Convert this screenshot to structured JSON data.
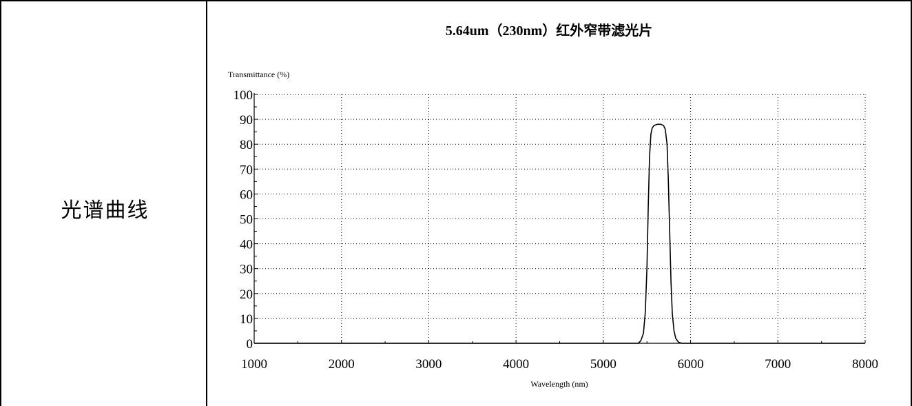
{
  "row_label": "光谱曲线",
  "chart_data": {
    "type": "line",
    "title": "5.64um（230nm）红外窄带滤光片",
    "xlabel": "Wavelength (nm)",
    "ylabel": "Transmittance (%)",
    "xlim": [
      1000,
      8000
    ],
    "ylim": [
      0,
      100
    ],
    "x_ticks": [
      1000,
      2000,
      3000,
      4000,
      5000,
      6000,
      7000,
      8000
    ],
    "y_ticks": [
      0,
      10,
      20,
      30,
      40,
      50,
      60,
      70,
      80,
      90,
      100
    ],
    "grid": true,
    "series": [
      {
        "x": [
          1000,
          5400,
          5430,
          5460,
          5480,
          5500,
          5515,
          5530,
          5545,
          5560,
          5580,
          5620,
          5660,
          5690,
          5710,
          5730,
          5745,
          5760,
          5775,
          5790,
          5810,
          5830,
          5860,
          5900,
          8000
        ],
        "y": [
          0,
          0,
          1,
          4,
          12,
          30,
          55,
          75,
          84,
          86.5,
          87.5,
          88,
          88,
          87.5,
          86,
          80,
          65,
          45,
          25,
          12,
          5,
          2,
          0.5,
          0,
          0
        ],
        "color": "#000000"
      }
    ]
  }
}
